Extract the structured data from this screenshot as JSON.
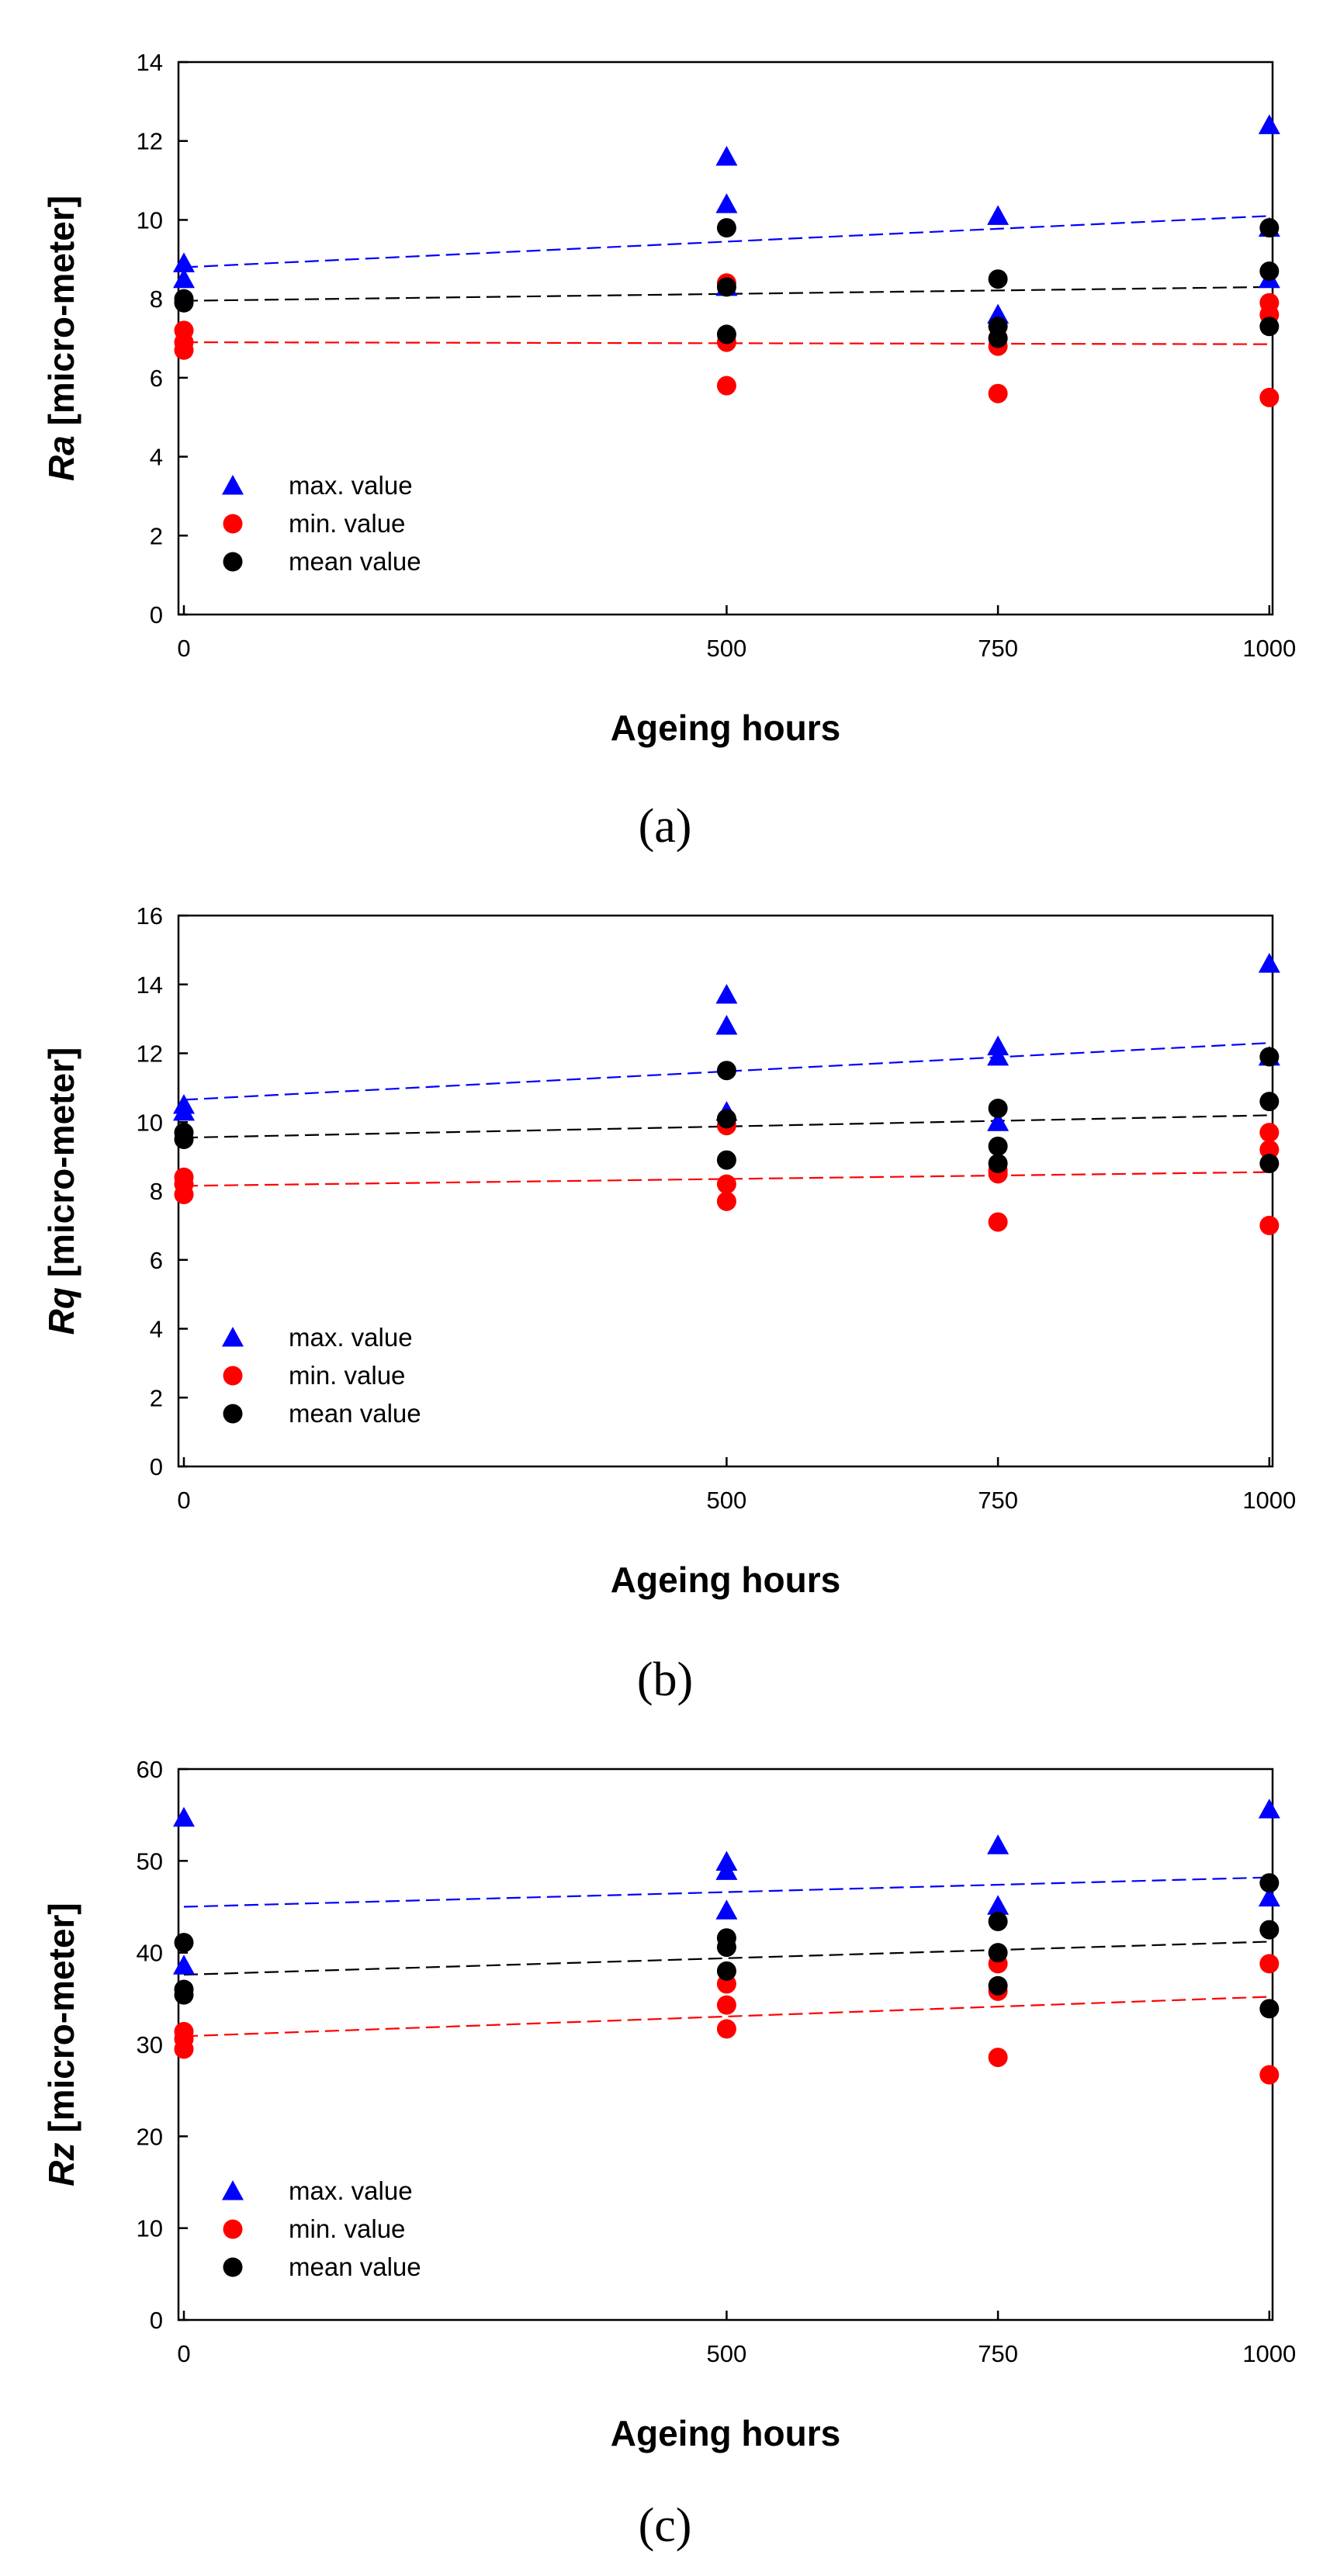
{
  "chart_data": [
    {
      "type": "scatter",
      "caption": "(a)",
      "ylabel": {
        "symbol": "Ra",
        "unit": " [micro-meter]"
      },
      "xlabel": "Ageing hours",
      "xlim": [
        -5,
        1003
      ],
      "ylim": [
        0,
        14
      ],
      "xticks": [
        0,
        500,
        750,
        1000
      ],
      "yticks": [
        0,
        2,
        4,
        6,
        8,
        10,
        12,
        14
      ],
      "series": [
        {
          "name": "max. value",
          "marker": "triangle",
          "color": "#0000ff",
          "x": [
            0,
            0,
            500,
            500,
            500,
            750,
            750,
            1000,
            1000,
            1000
          ],
          "y": [
            8.9,
            8.5,
            11.6,
            10.4,
            8.3,
            10.1,
            7.6,
            12.4,
            9.8,
            8.5
          ],
          "trend": [
            8.8,
            10.1
          ]
        },
        {
          "name": "min. value",
          "marker": "circle",
          "color": "#ff0000",
          "x": [
            0,
            0,
            0,
            500,
            500,
            500,
            750,
            750,
            750,
            1000,
            1000,
            1000
          ],
          "y": [
            7.2,
            6.9,
            6.7,
            8.4,
            6.9,
            5.8,
            7.0,
            6.8,
            5.6,
            7.9,
            7.6,
            5.5
          ],
          "trend": [
            6.9,
            6.85
          ]
        },
        {
          "name": "mean value",
          "marker": "circle",
          "color": "#000000",
          "x": [
            0,
            0,
            500,
            500,
            500,
            750,
            750,
            750,
            1000,
            1000,
            1000
          ],
          "y": [
            8.0,
            7.9,
            9.8,
            8.3,
            7.1,
            8.5,
            7.3,
            7.0,
            9.8,
            8.7,
            7.3
          ],
          "trend": [
            7.95,
            8.3
          ]
        }
      ]
    },
    {
      "type": "scatter",
      "caption": "(b)",
      "ylabel": {
        "symbol": "Rq",
        "unit": " [micro-meter]"
      },
      "xlabel": "Ageing hours",
      "xlim": [
        -5,
        1003
      ],
      "ylim": [
        0,
        16
      ],
      "xticks": [
        0,
        500,
        750,
        1000
      ],
      "yticks": [
        0,
        2,
        4,
        6,
        8,
        10,
        12,
        14,
        16
      ],
      "series": [
        {
          "name": "max. value",
          "marker": "triangle",
          "color": "#0000ff",
          "x": [
            0,
            0,
            500,
            500,
            500,
            750,
            750,
            750,
            1000,
            1000
          ],
          "y": [
            10.5,
            10.3,
            13.7,
            12.8,
            10.3,
            12.2,
            11.9,
            10.0,
            14.6,
            11.9
          ],
          "trend": [
            10.65,
            12.3
          ]
        },
        {
          "name": "min. value",
          "marker": "circle",
          "color": "#ff0000",
          "x": [
            0,
            0,
            0,
            500,
            500,
            500,
            750,
            750,
            750,
            1000,
            1000,
            1000
          ],
          "y": [
            8.4,
            8.2,
            7.9,
            9.9,
            8.2,
            7.7,
            8.6,
            8.5,
            7.1,
            9.7,
            9.2,
            7.0
          ],
          "trend": [
            8.15,
            8.55
          ]
        },
        {
          "name": "mean value",
          "marker": "circle",
          "color": "#000000",
          "x": [
            0,
            0,
            500,
            500,
            500,
            750,
            750,
            750,
            1000,
            1000,
            1000
          ],
          "y": [
            9.7,
            9.5,
            11.5,
            10.1,
            8.9,
            10.4,
            9.3,
            8.8,
            11.9,
            10.6,
            8.8
          ],
          "trend": [
            9.55,
            10.2
          ]
        }
      ]
    },
    {
      "type": "scatter",
      "caption": "(c)",
      "ylabel": {
        "symbol": "Rz",
        "unit": " [micro-meter]"
      },
      "xlabel": "Ageing hours",
      "xlim": [
        -5,
        1003
      ],
      "ylim": [
        0,
        60
      ],
      "xticks": [
        0,
        500,
        750,
        1000
      ],
      "yticks": [
        0,
        10,
        20,
        30,
        40,
        50,
        60
      ],
      "series": [
        {
          "name": "max. value",
          "marker": "triangle",
          "color": "#0000ff",
          "x": [
            0,
            0,
            500,
            500,
            500,
            750,
            750,
            1000,
            1000
          ],
          "y": [
            54.7,
            38.6,
            49.9,
            48.9,
            44.6,
            51.7,
            45.1,
            55.6,
            46.0
          ],
          "trend": [
            45.0,
            48.2
          ]
        },
        {
          "name": "min. value",
          "marker": "circle",
          "color": "#ff0000",
          "x": [
            0,
            0,
            0,
            500,
            500,
            500,
            750,
            750,
            750,
            1000,
            1000
          ],
          "y": [
            31.4,
            30.6,
            29.5,
            36.6,
            34.3,
            31.7,
            38.8,
            35.8,
            28.6,
            38.8,
            26.7
          ],
          "trend": [
            30.9,
            35.2
          ]
        },
        {
          "name": "mean value",
          "marker": "circle",
          "color": "#000000",
          "x": [
            0,
            0,
            0,
            500,
            500,
            500,
            750,
            750,
            750,
            1000,
            1000,
            1000
          ],
          "y": [
            41.1,
            36.0,
            35.4,
            41.6,
            40.6,
            38.0,
            43.4,
            40.0,
            36.4,
            47.6,
            42.5,
            33.9
          ],
          "trend": [
            37.6,
            41.2
          ]
        }
      ]
    }
  ]
}
